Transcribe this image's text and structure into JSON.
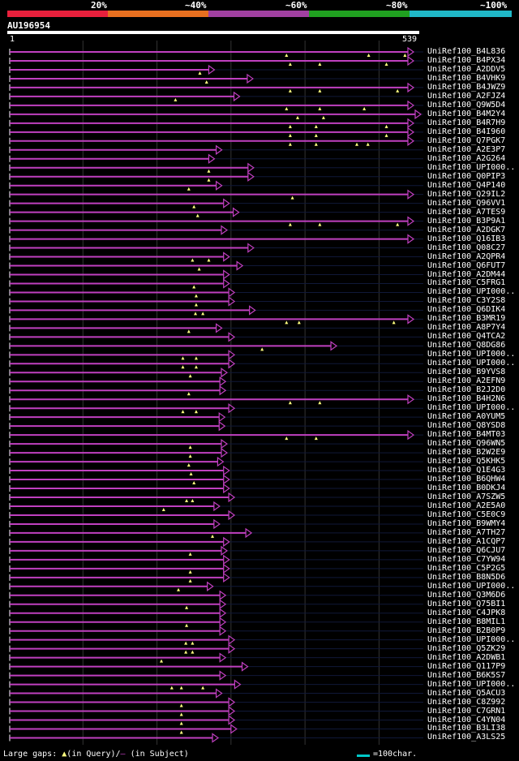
{
  "scale": {
    "labels": [
      "20%",
      "~40%",
      "~60%",
      "~80%",
      "~100%"
    ],
    "colors": [
      "#e8203c",
      "#e87020",
      "#a040a0",
      "#20a020",
      "#20b8c8"
    ]
  },
  "query": {
    "title": "AU196954",
    "start": "1",
    "end": "539",
    "length": 539
  },
  "hit_color": "#c040c0",
  "marker_color": "#ffff80",
  "hits": [
    {
      "name": "UniRef100_B4L836",
      "end": 539,
      "markers": [
        375,
        486,
        535
      ]
    },
    {
      "name": "UniRef100_B4PX34",
      "end": 539,
      "markers": [
        380,
        420,
        510
      ]
    },
    {
      "name": "UniRef100_A2DDV5",
      "end": 270,
      "markers": [
        258
      ]
    },
    {
      "name": "UniRef100_B4VHK9",
      "end": 322,
      "markers": [
        267
      ]
    },
    {
      "name": "UniRef100_B4JWZ9",
      "end": 539,
      "markers": [
        380,
        420,
        525
      ]
    },
    {
      "name": "UniRef100_A2FJZ4",
      "end": 304,
      "markers": [
        225
      ]
    },
    {
      "name": "UniRef100_Q9W5D4",
      "end": 539,
      "markers": [
        375,
        420,
        480
      ]
    },
    {
      "name": "UniRef100_B4M2Y4",
      "end": 550,
      "markers": [
        390,
        425
      ]
    },
    {
      "name": "UniRef100_B4R7H9",
      "end": 539,
      "markers": [
        380,
        415,
        510
      ]
    },
    {
      "name": "UniRef100_B4I960",
      "end": 539,
      "markers": [
        380,
        415,
        510
      ]
    },
    {
      "name": "UniRef100_Q7PGK7",
      "end": 539,
      "markers": [
        380,
        415,
        470,
        485
      ]
    },
    {
      "name": "UniRef100_A2E3P7",
      "end": 280,
      "markers": []
    },
    {
      "name": "UniRef100_A2G264",
      "end": 270,
      "markers": []
    },
    {
      "name": "UniRef100_UPI000..",
      "end": 323,
      "markers": [
        270
      ]
    },
    {
      "name": "UniRef100_Q0PIP3",
      "end": 323,
      "markers": [
        270
      ]
    },
    {
      "name": "UniRef100_Q4P140",
      "end": 280,
      "markers": [
        243
      ]
    },
    {
      "name": "UniRef100_Q29IL2",
      "end": 539,
      "markers": [
        383
      ]
    },
    {
      "name": "UniRef100_Q96VV1",
      "end": 290,
      "markers": [
        250
      ]
    },
    {
      "name": "UniRef100_A7TES9",
      "end": 303,
      "markers": [
        255
      ]
    },
    {
      "name": "UniRef100_B3P9A1",
      "end": 539,
      "markers": [
        380,
        420,
        525
      ]
    },
    {
      "name": "UniRef100_A2DGK7",
      "end": 287,
      "markers": []
    },
    {
      "name": "UniRef100_Q16IB3",
      "end": 539,
      "markers": []
    },
    {
      "name": "UniRef100_Q08C27",
      "end": 323,
      "markers": []
    },
    {
      "name": "UniRef100_A2QPR4",
      "end": 290,
      "markers": [
        248,
        270
      ]
    },
    {
      "name": "UniRef100_Q6FUT7",
      "end": 308,
      "markers": [
        257
      ]
    },
    {
      "name": "UniRef100_A2DM44",
      "end": 290,
      "markers": []
    },
    {
      "name": "UniRef100_C5FRG1",
      "end": 290,
      "markers": [
        250
      ]
    },
    {
      "name": "UniRef100_UPI000..",
      "end": 297,
      "markers": [
        253
      ]
    },
    {
      "name": "UniRef100_C3Y2S8",
      "end": 297,
      "markers": [
        253
      ]
    },
    {
      "name": "UniRef100_Q6DIK4",
      "end": 325,
      "markers": [
        252,
        262
      ]
    },
    {
      "name": "UniRef100_B3MR19",
      "end": 539,
      "markers": [
        375,
        392,
        520
      ]
    },
    {
      "name": "UniRef100_A8P7Y4",
      "end": 280,
      "markers": [
        243
      ]
    },
    {
      "name": "UniRef100_Q4TCA2",
      "end": 297,
      "markers": []
    },
    {
      "name": "UniRef100_Q8DG86",
      "end": 435,
      "markers": [
        342
      ]
    },
    {
      "name": "UniRef100_UPI000..",
      "end": 297,
      "markers": [
        235,
        253
      ]
    },
    {
      "name": "UniRef100_UPI000..",
      "end": 297,
      "markers": [
        235,
        253
      ]
    },
    {
      "name": "UniRef100_B9YVS8",
      "end": 287,
      "markers": [
        245
      ]
    },
    {
      "name": "UniRef100_A2EFN9",
      "end": 285,
      "markers": []
    },
    {
      "name": "UniRef100_B2J2D0",
      "end": 285,
      "markers": [
        243
      ]
    },
    {
      "name": "UniRef100_B4H2N6",
      "end": 539,
      "markers": [
        380,
        420
      ]
    },
    {
      "name": "UniRef100_UPI000..",
      "end": 297,
      "markers": [
        235,
        253
      ]
    },
    {
      "name": "UniRef100_A0YUM5",
      "end": 284,
      "markers": []
    },
    {
      "name": "UniRef100_Q8YSD8",
      "end": 284,
      "markers": []
    },
    {
      "name": "UniRef100_B4MT03",
      "end": 539,
      "markers": [
        375,
        415
      ]
    },
    {
      "name": "UniRef100_Q96WN5",
      "end": 287,
      "markers": [
        245
      ]
    },
    {
      "name": "UniRef100_B2W2E9",
      "end": 287,
      "markers": [
        245
      ]
    },
    {
      "name": "UniRef100_Q5KHK5",
      "end": 282,
      "markers": [
        243
      ]
    },
    {
      "name": "UniRef100_Q1E4G3",
      "end": 290,
      "markers": [
        246
      ]
    },
    {
      "name": "UniRef100_B6QHW4",
      "end": 290,
      "markers": [
        250
      ]
    },
    {
      "name": "UniRef100_B0DKJ4",
      "end": 290,
      "markers": []
    },
    {
      "name": "UniRef100_A7SZW5",
      "end": 297,
      "markers": [
        240,
        248
      ]
    },
    {
      "name": "UniRef100_A2E5A0",
      "end": 277,
      "markers": [
        209
      ]
    },
    {
      "name": "UniRef100_C5E0C9",
      "end": 297,
      "markers": []
    },
    {
      "name": "UniRef100_B9WMY4",
      "end": 277,
      "markers": []
    },
    {
      "name": "UniRef100_A7TH27",
      "end": 320,
      "markers": [
        275
      ]
    },
    {
      "name": "UniRef100_A1CQP7",
      "end": 290,
      "markers": []
    },
    {
      "name": "UniRef100_Q6CJU7",
      "end": 287,
      "markers": [
        245
      ]
    },
    {
      "name": "UniRef100_C7YW94",
      "end": 290,
      "markers": []
    },
    {
      "name": "UniRef100_C5P2G5",
      "end": 290,
      "markers": [
        245
      ]
    },
    {
      "name": "UniRef100_B8N5D6",
      "end": 290,
      "markers": [
        245
      ]
    },
    {
      "name": "UniRef100_UPI000..",
      "end": 268,
      "markers": [
        229
      ]
    },
    {
      "name": "UniRef100_Q3M6D6",
      "end": 285,
      "markers": []
    },
    {
      "name": "UniRef100_Q75BI1",
      "end": 285,
      "markers": [
        240
      ]
    },
    {
      "name": "UniRef100_C4JPK8",
      "end": 285,
      "markers": []
    },
    {
      "name": "UniRef100_B8MIL1",
      "end": 285,
      "markers": [
        240
      ]
    },
    {
      "name": "UniRef100_B2B0P9",
      "end": 285,
      "markers": []
    },
    {
      "name": "UniRef100_UPI000..",
      "end": 297,
      "markers": [
        239,
        248
      ]
    },
    {
      "name": "UniRef100_Q5ZK29",
      "end": 297,
      "markers": [
        239,
        248
      ]
    },
    {
      "name": "UniRef100_A2DWB1",
      "end": 285,
      "markers": [
        206
      ]
    },
    {
      "name": "UniRef100_Q117P9",
      "end": 315,
      "markers": []
    },
    {
      "name": "UniRef100_B6K5S7",
      "end": 285,
      "markers": []
    },
    {
      "name": "UniRef100_UPI000..",
      "end": 305,
      "markers": [
        220,
        233,
        262
      ]
    },
    {
      "name": "UniRef100_Q5ACU3",
      "end": 280,
      "markers": []
    },
    {
      "name": "UniRef100_C8Z992",
      "end": 297,
      "markers": [
        233
      ]
    },
    {
      "name": "UniRef100_C7GRN1",
      "end": 297,
      "markers": [
        233
      ]
    },
    {
      "name": "UniRef100_C4YN04",
      "end": 297,
      "markers": [
        233
      ]
    },
    {
      "name": "UniRef100_B3LI38",
      "end": 300,
      "markers": [
        233
      ]
    },
    {
      "name": "UniRef100_A3LS25",
      "end": 275,
      "markers": []
    }
  ],
  "legend": {
    "prefix": "Large gaps:",
    "query_marker": "▲",
    "query_text": "(in Query)/",
    "subject_marker": "—",
    "subject_text": " (in Subject)",
    "scale_text": "=100char."
  }
}
